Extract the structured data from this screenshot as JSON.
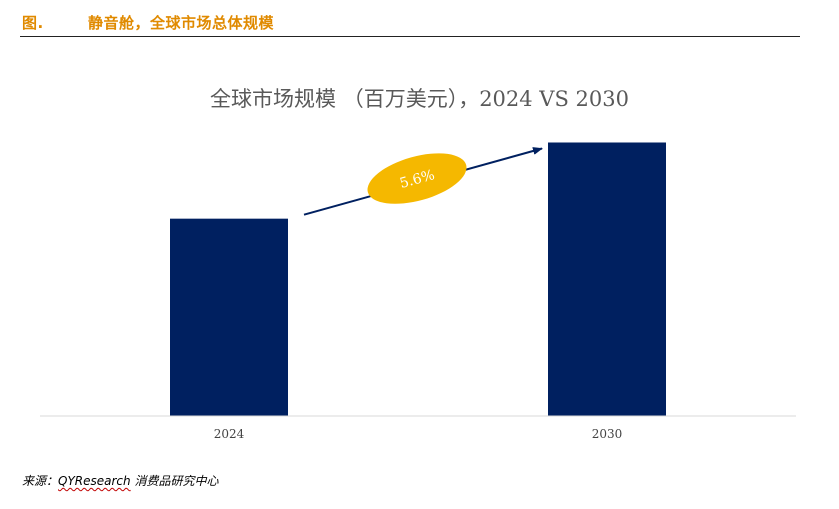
{
  "figure": {
    "label": "图.",
    "title": "静音舱，全球市场总体规模"
  },
  "chart_data": {
    "type": "bar",
    "title": "全球市场规模 （百万美元），2024 VS 2030",
    "categories": [
      "2024",
      "2030"
    ],
    "values": [
      100,
      138.6
    ],
    "ylim": [
      0,
      150
    ],
    "xlabel": "",
    "ylabel": "",
    "grid": false,
    "legend": "none",
    "bar_color": "#002060",
    "annotation": {
      "text": "5.6%",
      "shape_color": "#f5b800",
      "arrow_color": "#002060",
      "from": "2024",
      "to": "2030"
    }
  },
  "source": {
    "prefix": "来源：",
    "name": "QYResearch",
    "suffix": " 消费品研究中心"
  }
}
